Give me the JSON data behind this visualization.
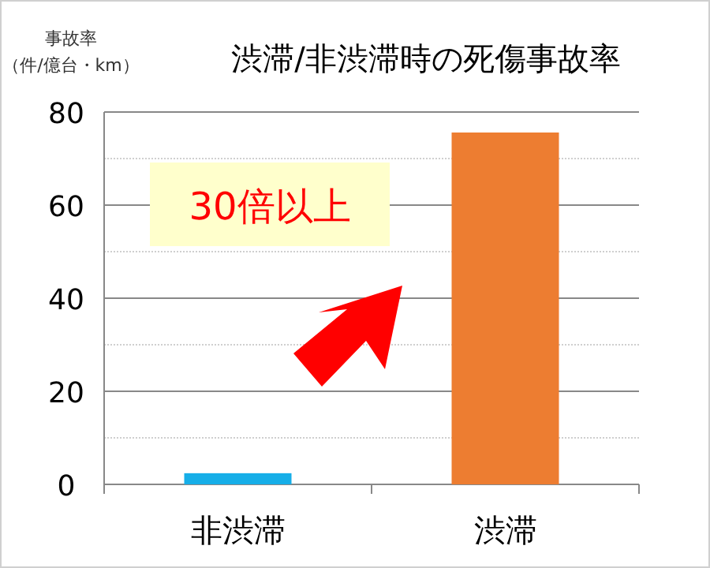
{
  "chart_data": {
    "type": "bar",
    "title": "渋滞/非渋滞時の死傷事故率",
    "ylabel": "事故率（件/億台・km）",
    "categories": [
      "非渋滞",
      "渋滞"
    ],
    "values": [
      2.4,
      75.6
    ],
    "colors": [
      "#16aee8",
      "#ed7d31"
    ],
    "ylim": [
      0,
      80
    ],
    "yticks": [
      0,
      20,
      40,
      60,
      80
    ],
    "grid": true,
    "annotations": [
      "30倍以上"
    ]
  }
}
